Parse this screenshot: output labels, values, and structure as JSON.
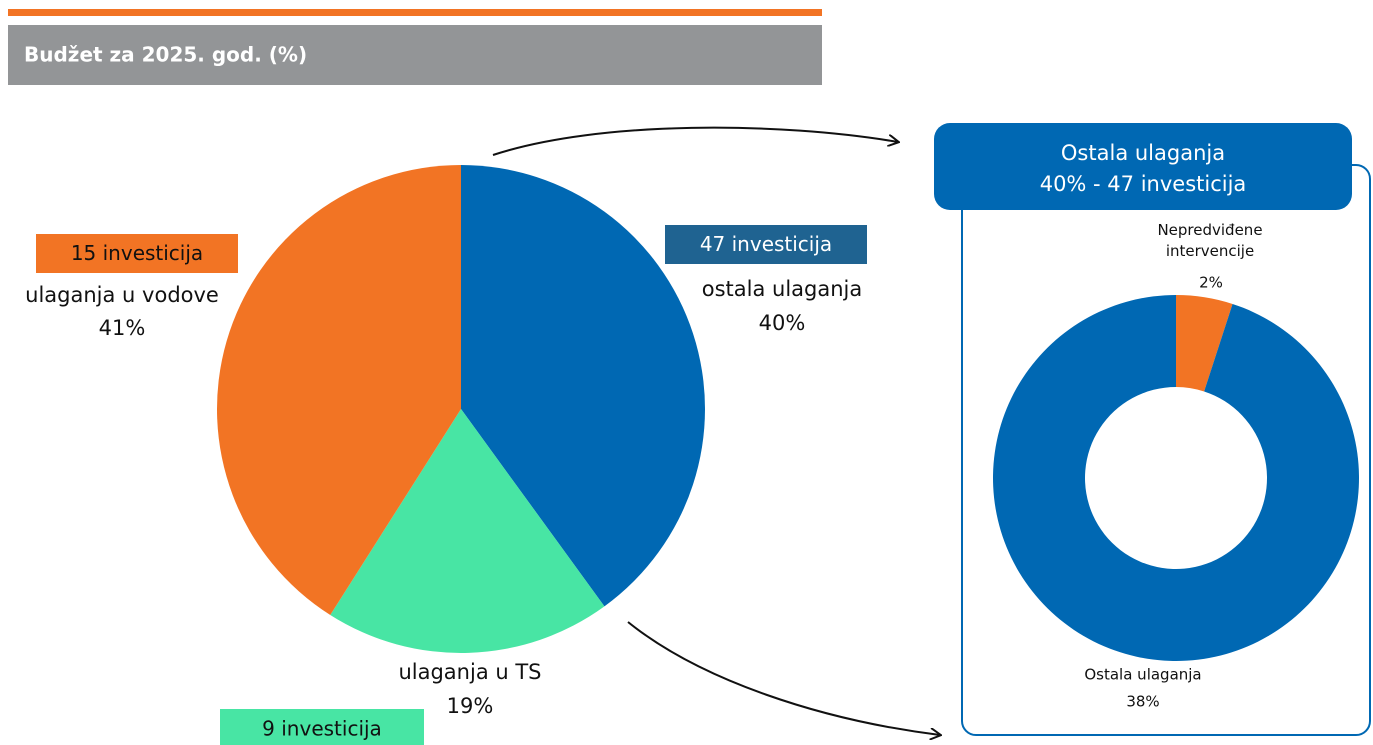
{
  "chart_data": [
    {
      "type": "pie",
      "title": "Budžet za 2025. god. (%)",
      "categories": [
        "ostala ulaganja",
        "ulaganja u TS",
        "ulaganja u vodove"
      ],
      "values": [
        40,
        19,
        41
      ],
      "value_labels": [
        "40%",
        "19%",
        "41%"
      ],
      "annotations": [
        "47 investicija",
        "9 investicija",
        "15 investicija"
      ],
      "colors": [
        "#0068b3",
        "#48e5a4",
        "#f27424"
      ]
    },
    {
      "type": "donut",
      "title": "Ostala ulaganja",
      "subtitle": "40% - 47 investicija",
      "categories": [
        "Nepredviđene intervencije",
        "Ostala ulaganja"
      ],
      "values": [
        2,
        38
      ],
      "value_labels": [
        "2%",
        "38%"
      ],
      "colors": [
        "#f27424",
        "#0068b3"
      ]
    }
  ]
}
